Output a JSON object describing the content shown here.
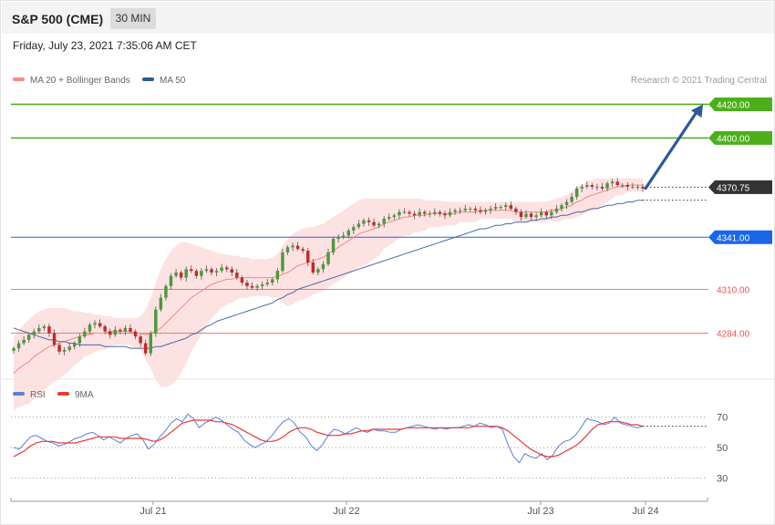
{
  "header": {
    "title": "S&P 500 (CME)",
    "interval": "30 MIN",
    "datetime": "Friday, July 23, 2021 7:35:06 AM CET"
  },
  "credit": "Research © 2021 Trading Central",
  "colors": {
    "up_candle": "#4a9a3a",
    "down_candle": "#c62828",
    "bollinger_fill": "#fde2e2",
    "ma20": "#f28b82",
    "ma50": "#4a6aa8",
    "resistance": "#4caf1a",
    "pivot": "#1a66e6",
    "support": "#ef5350",
    "last_price": "#333333",
    "forecast_arrow": "#2c5a9a",
    "rsi": "#5b7fd6",
    "rsi_ma": "#e53935"
  },
  "chart_data": [
    {
      "type": "candlestick",
      "title": "S&P 500 (CME)",
      "ylim": [
        4255,
        4430
      ],
      "legend": [
        {
          "label": "MA 20 + Bollinger Bands",
          "color": "#f28b82"
        },
        {
          "label": "MA 50",
          "color": "#2c5a9a"
        }
      ],
      "legend_placement": "top-left",
      "x_ticks": [
        "Jul 21",
        "Jul 22",
        "Jul 23",
        "Jul 24"
      ],
      "levels": [
        {
          "price": 4420.0,
          "label": "4420.00",
          "kind": "resistance"
        },
        {
          "price": 4400.0,
          "label": "4400.00",
          "kind": "resistance"
        },
        {
          "price": 4370.75,
          "label": "4370.75",
          "kind": "last"
        },
        {
          "price": 4341.0,
          "label": "4341.00",
          "kind": "pivot"
        },
        {
          "price": 4310.0,
          "label": "4310.00",
          "kind": "support"
        },
        {
          "price": 4284.0,
          "label": "4284.00",
          "kind": "support"
        }
      ],
      "close": [
        4275,
        4278,
        4280,
        4283,
        4285,
        4287,
        4288,
        4284,
        4277,
        4273,
        4274,
        4276,
        4278,
        4282,
        4285,
        4289,
        4290,
        4288,
        4285,
        4283,
        4286,
        4285,
        4287,
        4285,
        4282,
        4278,
        4272,
        4284,
        4298,
        4305,
        4312,
        4318,
        4320,
        4317,
        4322,
        4321,
        4318,
        4321,
        4322,
        4320,
        4321,
        4323,
        4322,
        4320,
        4317,
        4314,
        4312,
        4311,
        4312,
        4313,
        4314,
        4316,
        4321,
        4332,
        4335,
        4336,
        4334,
        4333,
        4326,
        4320,
        4322,
        4325,
        4332,
        4340,
        4341,
        4342,
        4345,
        4347,
        4349,
        4351,
        4350,
        4348,
        4349,
        4352,
        4353,
        4354,
        4356,
        4356,
        4355,
        4354,
        4356,
        4355,
        4355,
        4356,
        4355,
        4354,
        4356,
        4357,
        4357,
        4358,
        4358,
        4357,
        4356,
        4357,
        4358,
        4359,
        4359,
        4360,
        4358,
        4356,
        4353,
        4355,
        4353,
        4354,
        4356,
        4354,
        4356,
        4358,
        4360,
        4362,
        4365,
        4370,
        4371,
        4372,
        4371,
        4371,
        4370,
        4373,
        4374,
        4372,
        4372,
        4371,
        4371,
        4371,
        4370
      ],
      "ma20": [
        4260,
        4263,
        4265,
        4267,
        4270,
        4272,
        4274,
        4276,
        4277,
        4278,
        4279,
        4280,
        4281,
        4282,
        4283,
        4283,
        4284,
        4284,
        4284,
        4285,
        4285,
        4285,
        4285,
        4285,
        4284,
        4284,
        4283,
        4284,
        4285,
        4287,
        4290,
        4293,
        4296,
        4299,
        4302,
        4305,
        4307,
        4309,
        4311,
        4313,
        4314,
        4315,
        4316,
        4316,
        4317,
        4317,
        4317,
        4317,
        4317,
        4317,
        4317,
        4317,
        4318,
        4319,
        4320,
        4322,
        4324,
        4325,
        4326,
        4327,
        4328,
        4329,
        4331,
        4333,
        4335,
        4337,
        4339,
        4341,
        4343,
        4344,
        4345,
        4346,
        4347,
        4349,
        4350,
        4351,
        4352,
        4353,
        4353,
        4354,
        4354,
        4354,
        4355,
        4355,
        4355,
        4355,
        4355,
        4355,
        4356,
        4356,
        4356,
        4356,
        4357,
        4357,
        4357,
        4357,
        4357,
        4357,
        4357,
        4356,
        4356,
        4356,
        4356,
        4356,
        4356,
        4356,
        4357,
        4357,
        4358,
        4359,
        4360,
        4362,
        4363,
        4365,
        4366,
        4367,
        4368,
        4369,
        4370,
        4371,
        4371,
        4372,
        4372,
        4372,
        4372
      ],
      "ma50": [
        4287,
        4286,
        4285,
        4284,
        4283,
        4282,
        4281,
        4280,
        4280,
        4279,
        4279,
        4278,
        4278,
        4277,
        4277,
        4277,
        4277,
        4277,
        4276,
        4276,
        4276,
        4276,
        4276,
        4275,
        4275,
        4275,
        4275,
        4275,
        4276,
        4276,
        4277,
        4278,
        4279,
        4280,
        4281,
        4283,
        4284,
        4286,
        4288,
        4289,
        4291,
        4292,
        4293,
        4294,
        4295,
        4296,
        4297,
        4298,
        4299,
        4300,
        4301,
        4302,
        4304,
        4305,
        4307,
        4308,
        4310,
        4311,
        4312,
        4313,
        4314,
        4315,
        4316,
        4317,
        4318,
        4319,
        4320,
        4321,
        4322,
        4323,
        4324,
        4325,
        4326,
        4327,
        4328,
        4329,
        4330,
        4331,
        4332,
        4333,
        4334,
        4335,
        4336,
        4337,
        4338,
        4339,
        4340,
        4341,
        4342,
        4343,
        4344,
        4345,
        4346,
        4346,
        4347,
        4348,
        4348,
        4349,
        4349,
        4350,
        4350,
        4350,
        4351,
        4351,
        4352,
        4352,
        4353,
        4353,
        4354,
        4354,
        4355,
        4356,
        4356,
        4357,
        4358,
        4358,
        4359,
        4360,
        4360,
        4361,
        4361,
        4362,
        4362,
        4363,
        4363
      ],
      "bb_upper": [
        4282,
        4286,
        4289,
        4292,
        4295,
        4297,
        4298,
        4299,
        4299,
        4299,
        4299,
        4298,
        4297,
        4297,
        4296,
        4296,
        4295,
        4295,
        4294,
        4294,
        4293,
        4293,
        4293,
        4293,
        4293,
        4294,
        4298,
        4305,
        4314,
        4322,
        4328,
        4333,
        4336,
        4338,
        4338,
        4337,
        4336,
        4335,
        4334,
        4333,
        4332,
        4331,
        4331,
        4330,
        4330,
        4329,
        4329,
        4328,
        4328,
        4328,
        4328,
        4329,
        4331,
        4336,
        4340,
        4343,
        4345,
        4346,
        4347,
        4347,
        4348,
        4349,
        4351,
        4353,
        4355,
        4357,
        4359,
        4361,
        4363,
        4364,
        4364,
        4364,
        4364,
        4364,
        4364,
        4364,
        4364,
        4364,
        4364,
        4364,
        4364,
        4363,
        4363,
        4363,
        4363,
        4362,
        4362,
        4362,
        4362,
        4362,
        4362,
        4362,
        4362,
        4362,
        4362,
        4362,
        4362,
        4362,
        4362,
        4362,
        4362,
        4362,
        4362,
        4362,
        4362,
        4362,
        4363,
        4364,
        4365,
        4366,
        4368,
        4371,
        4372,
        4374,
        4375,
        4376,
        4376,
        4376,
        4376,
        4376,
        4376,
        4376,
        4376,
        4376,
        4376
      ],
      "bb_lower": [
        4238,
        4240,
        4241,
        4242,
        4245,
        4247,
        4250,
        4253,
        4255,
        4257,
        4259,
        4262,
        4265,
        4267,
        4270,
        4271,
        4273,
        4274,
        4274,
        4276,
        4277,
        4277,
        4277,
        4277,
        4275,
        4274,
        4268,
        4263,
        4256,
        4252,
        4252,
        4253,
        4256,
        4260,
        4266,
        4273,
        4278,
        4283,
        4288,
        4293,
        4296,
        4299,
        4301,
        4302,
        4304,
        4305,
        4305,
        4306,
        4306,
        4306,
        4306,
        4305,
        4305,
        4302,
        4300,
        4301,
        4303,
        4304,
        4305,
        4307,
        4308,
        4309,
        4311,
        4313,
        4315,
        4317,
        4319,
        4321,
        4323,
        4324,
        4326,
        4328,
        4330,
        4334,
        4336,
        4338,
        4340,
        4342,
        4342,
        4344,
        4344,
        4345,
        4347,
        4347,
        4347,
        4348,
        4348,
        4348,
        4350,
        4350,
        4350,
        4350,
        4352,
        4352,
        4352,
        4352,
        4352,
        4352,
        4352,
        4350,
        4350,
        4350,
        4350,
        4350,
        4350,
        4350,
        4351,
        4350,
        4351,
        4352,
        4352,
        4353,
        4354,
        4356,
        4357,
        4358,
        4360,
        4362,
        4364,
        4366,
        4366,
        4368,
        4368,
        4368,
        4368
      ],
      "forecast_target": 4420.0
    },
    {
      "type": "line",
      "title": "RSI",
      "ylim": [
        20,
        80
      ],
      "y_ticks": [
        30,
        50,
        70
      ],
      "legend": [
        {
          "label": "RSI",
          "color": "#5b7fd6"
        },
        {
          "label": "9MA",
          "color": "#e53935"
        }
      ],
      "legend_placement": "top-left",
      "series": [
        {
          "name": "RSI",
          "values": [
            50,
            49,
            53,
            57,
            58,
            56,
            54,
            53,
            51,
            52,
            54,
            56,
            57,
            59,
            60,
            58,
            55,
            57,
            55,
            53,
            56,
            58,
            59,
            55,
            49,
            52,
            57,
            61,
            66,
            69,
            67,
            72,
            69,
            63,
            66,
            68,
            70,
            68,
            65,
            62,
            60,
            55,
            52,
            50,
            52,
            54,
            58,
            63,
            67,
            69,
            66,
            60,
            57,
            51,
            48,
            52,
            58,
            62,
            61,
            59,
            61,
            63,
            61,
            60,
            62,
            61,
            61,
            60,
            60,
            62,
            63,
            64,
            65,
            64,
            63,
            62,
            63,
            62,
            63,
            63,
            64,
            65,
            64,
            66,
            65,
            63,
            64,
            62,
            52,
            44,
            40,
            46,
            44,
            43,
            46,
            42,
            45,
            51,
            54,
            55,
            58,
            63,
            69,
            68,
            67,
            65,
            66,
            70,
            66,
            65,
            64,
            63,
            64
          ]
        },
        {
          "name": "9MA",
          "values": [
            44,
            46,
            48,
            51,
            53,
            54,
            54,
            54,
            53,
            53,
            53,
            53,
            54,
            55,
            56,
            57,
            57,
            57,
            57,
            56,
            56,
            56,
            56,
            56,
            55,
            54,
            55,
            57,
            60,
            63,
            66,
            67,
            68,
            68,
            68,
            68,
            67,
            67,
            66,
            65,
            63,
            61,
            59,
            57,
            55,
            54,
            54,
            55,
            57,
            60,
            62,
            63,
            63,
            62,
            60,
            59,
            58,
            58,
            58,
            59,
            59,
            60,
            61,
            61,
            62,
            62,
            62,
            62,
            62,
            62,
            63,
            63,
            63,
            63,
            63,
            63,
            63,
            63,
            63,
            63,
            63,
            63,
            64,
            64,
            64,
            64,
            64,
            63,
            61,
            58,
            55,
            52,
            49,
            47,
            45,
            44,
            44,
            45,
            47,
            49,
            51,
            54,
            58,
            62,
            65,
            66,
            67,
            67,
            67,
            66,
            65,
            65,
            64
          ]
        }
      ]
    }
  ]
}
